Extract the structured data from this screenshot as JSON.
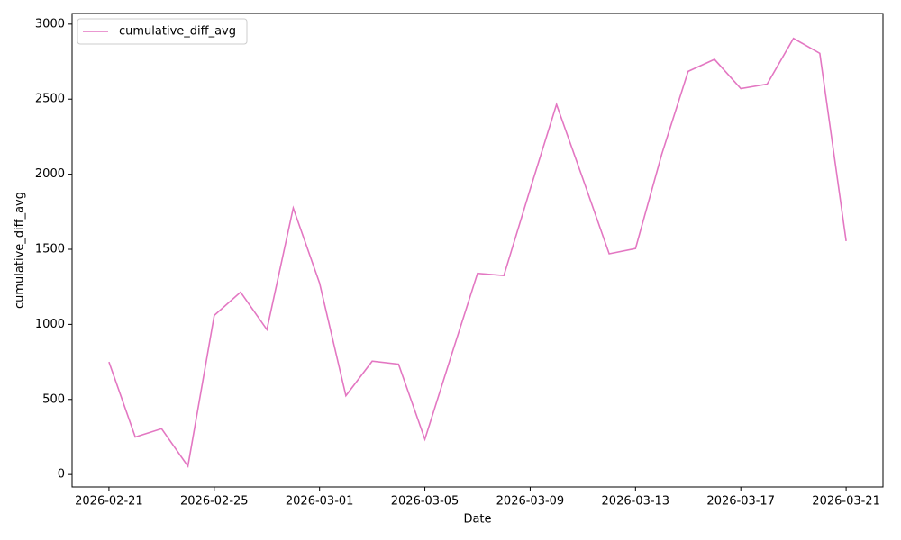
{
  "chart_data": {
    "type": "line",
    "xlabel": "Date",
    "ylabel": "cumulative_diff_avg",
    "x": [
      "2026-02-21",
      "2026-02-22",
      "2026-02-23",
      "2026-02-24",
      "2026-02-25",
      "2026-02-26",
      "2026-02-27",
      "2026-02-28",
      "2026-03-01",
      "2026-03-02",
      "2026-03-03",
      "2026-03-04",
      "2026-03-05",
      "2026-03-06",
      "2026-03-07",
      "2026-03-08",
      "2026-03-09",
      "2026-03-10",
      "2026-03-11",
      "2026-03-12",
      "2026-03-13",
      "2026-03-14",
      "2026-03-15",
      "2026-03-16",
      "2026-03-17",
      "2026-03-18",
      "2026-03-19",
      "2026-03-20",
      "2026-03-21"
    ],
    "series": [
      {
        "name": "cumulative_diff_avg",
        "color": "#e377c2",
        "values": [
          750,
          250,
          305,
          55,
          1060,
          1215,
          965,
          1775,
          1275,
          525,
          755,
          735,
          235,
          790,
          1340,
          1325,
          1900,
          2465,
          1970,
          1470,
          1505,
          2135,
          2685,
          2765,
          2570,
          2600,
          2905,
          2805,
          1555
        ]
      }
    ],
    "xticks": [
      "2026-02-21",
      "2026-02-25",
      "2026-03-01",
      "2026-03-05",
      "2026-03-09",
      "2026-03-13",
      "2026-03-17",
      "2026-03-21"
    ],
    "ylim": [
      -83,
      3071
    ],
    "yticks": [
      0,
      500,
      1000,
      1500,
      2000,
      2500,
      3000
    ],
    "legend": "upper left",
    "grid": false
  }
}
